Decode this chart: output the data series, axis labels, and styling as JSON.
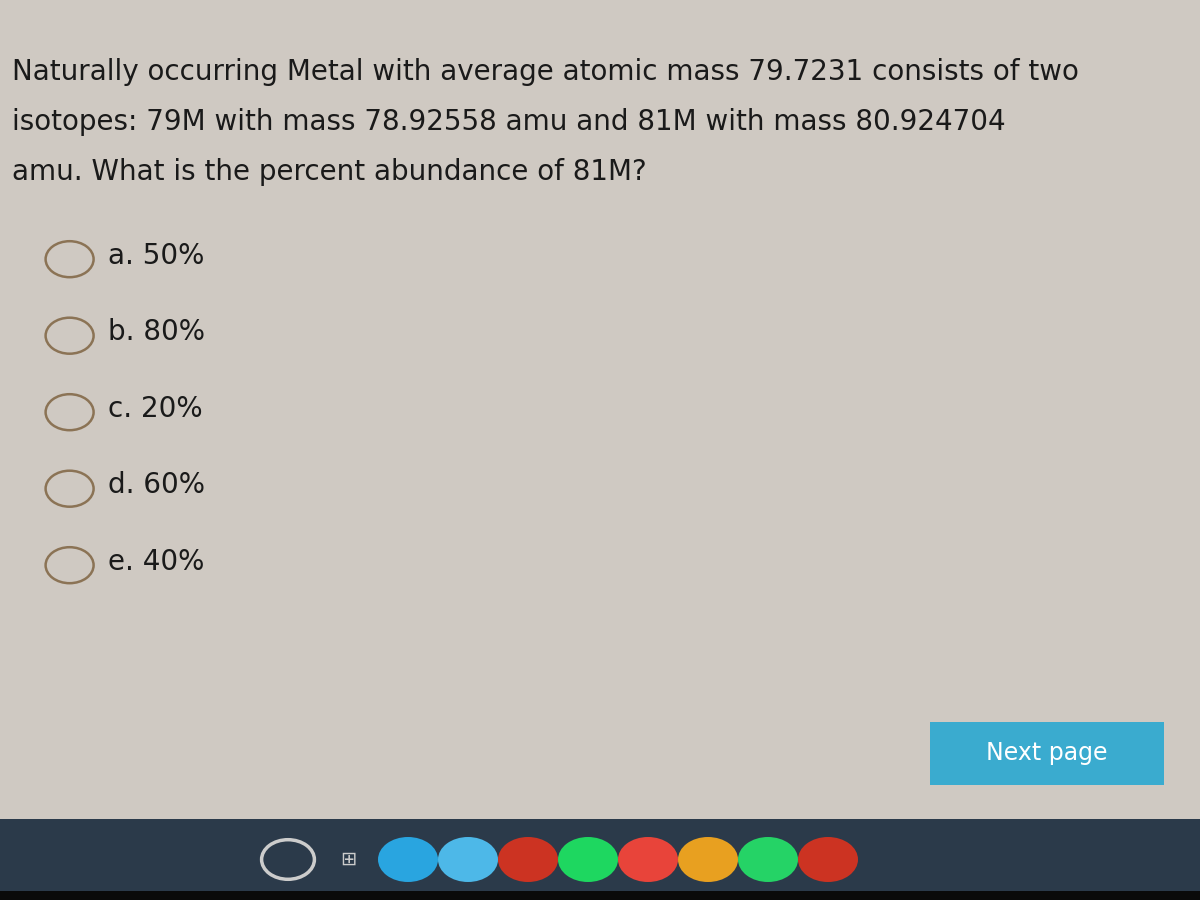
{
  "question_text_line1": "Naturally occurring Metal with average atomic mass 79.7231 consists of two",
  "question_text_line2": "isotopes: 79M with mass 78.92558 amu and 81M with mass 80.924704",
  "question_text_line3": "amu. What is the percent abundance of 81M?",
  "options": [
    {
      "label": "a.",
      "value": "50%"
    },
    {
      "label": "b.",
      "value": "80%"
    },
    {
      "label": "c.",
      "value": "20%"
    },
    {
      "label": "d.",
      "value": "60%"
    },
    {
      "label": "e.",
      "value": "40%"
    }
  ],
  "next_button_text": "Next page",
  "next_button_color": "#3aabcf",
  "next_button_text_color": "#ffffff",
  "background_color": "#c9c3bc",
  "text_color": "#1a1a1a",
  "question_fontsize": 20,
  "option_fontsize": 20,
  "circle_color": "#8b7355",
  "taskbar_color": "#2b3a4a"
}
